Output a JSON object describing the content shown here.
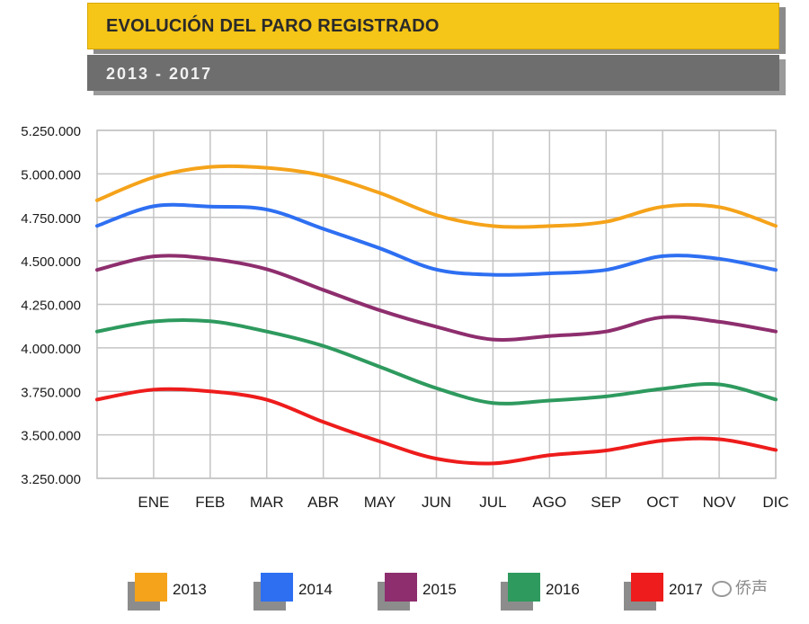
{
  "header": {
    "title": "EVOLUCIÓN DEL PARO REGISTRADO",
    "subtitle": "2013 - 2017"
  },
  "watermark": {
    "text": "侨声"
  },
  "chart_data": {
    "type": "line",
    "title": "EVOLUCIÓN DEL PARO REGISTRADO",
    "subtitle": "2013 - 2017",
    "xlabel": "",
    "ylabel": "",
    "categories": [
      "ENE",
      "FEB",
      "MAR",
      "ABR",
      "MAY",
      "JUN",
      "JUL",
      "AGO",
      "SEP",
      "OCT",
      "NOV",
      "DIC"
    ],
    "ylim": [
      3250000,
      5250000
    ],
    "yticks": [
      3250000,
      3500000,
      3750000,
      4000000,
      4250000,
      4500000,
      4750000,
      5000000,
      5250000
    ],
    "ytick_labels": [
      "3.250.000",
      "3.500.000",
      "3.750.000",
      "4.000.000",
      "4.250.000",
      "4.500.000",
      "4.750.000",
      "5.000.000",
      "5.250.000"
    ],
    "grid": true,
    "legend_position": "bottom",
    "series": [
      {
        "name": "2013",
        "color": "#f5a31a",
        "start": 4848000,
        "values": [
          4980000,
          5040000,
          5035000,
          4990000,
          4890000,
          4763000,
          4700000,
          4700000,
          4725000,
          4811000,
          4809000,
          4701000
        ]
      },
      {
        "name": "2014",
        "color": "#2e6ff2",
        "start": 4701000,
        "values": [
          4814000,
          4812000,
          4795000,
          4684000,
          4572000,
          4450000,
          4420000,
          4428000,
          4448000,
          4527000,
          4512000,
          4448000
        ]
      },
      {
        "name": "2015",
        "color": "#8e2e6e",
        "start": 4448000,
        "values": [
          4526000,
          4512000,
          4452000,
          4333000,
          4216000,
          4121000,
          4048000,
          4068000,
          4094000,
          4176000,
          4150000,
          4094000
        ]
      },
      {
        "name": "2016",
        "color": "#2e9a5e",
        "start": 4094000,
        "values": [
          4152000,
          4153000,
          4094000,
          4011000,
          3891000,
          3768000,
          3683000,
          3697000,
          3721000,
          3765000,
          3790000,
          3703000
        ]
      },
      {
        "name": "2017",
        "color": "#ee1c1c",
        "start": 3703000,
        "values": [
          3760000,
          3750000,
          3702000,
          3574000,
          3462000,
          3363000,
          3336000,
          3383000,
          3410000,
          3467000,
          3475000,
          3413000
        ]
      }
    ]
  }
}
